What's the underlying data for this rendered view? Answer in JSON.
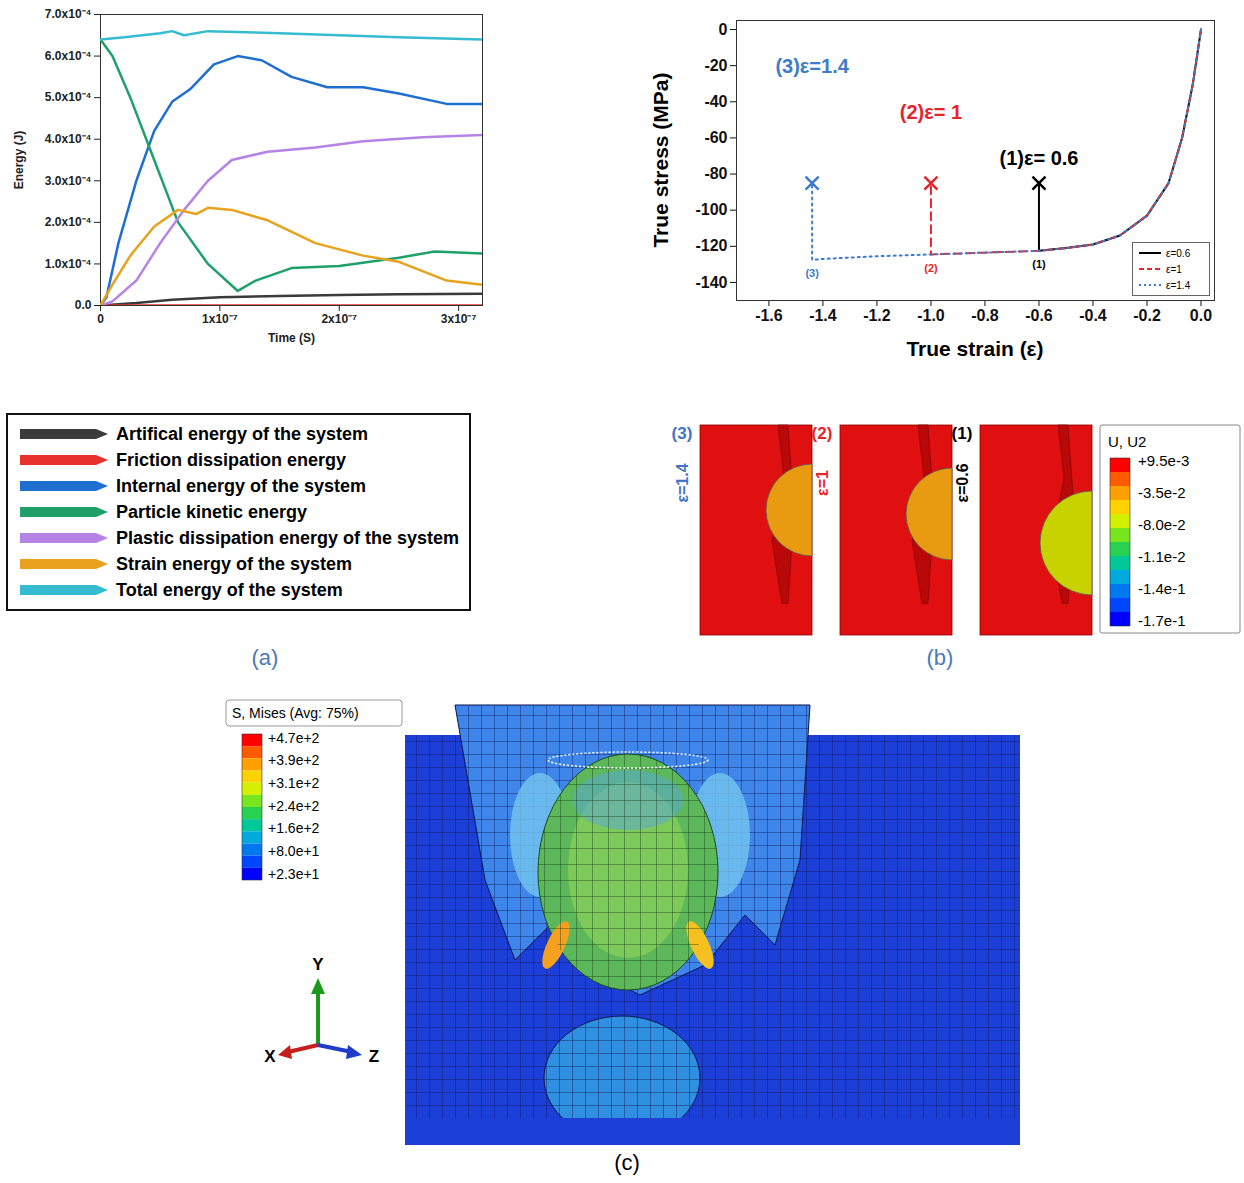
{
  "chart_data": [
    {
      "panel": "(a)",
      "type": "line",
      "x_label": "Time (S)",
      "y_label": "Energy (J)",
      "xlim": [
        0,
        3.2e-07
      ],
      "xticks": [
        0,
        {
          "value": 1e-07,
          "label": "1x10⁻⁷"
        },
        {
          "value": 2e-07,
          "label": "2x10⁻⁷"
        },
        {
          "value": 3e-07,
          "label": "3x10⁻⁷"
        }
      ],
      "ylim": [
        0,
        0.0007
      ],
      "yticks": [
        {
          "value": 0,
          "label": "0.0"
        },
        {
          "value": 0.0001,
          "label": "1.0x10⁻⁴"
        },
        {
          "value": 0.0002,
          "label": "2.0x10⁻⁴"
        },
        {
          "value": 0.0003,
          "label": "3.0x10⁻⁴"
        },
        {
          "value": 0.0004,
          "label": "4.0x10⁻⁴"
        },
        {
          "value": 0.0005,
          "label": "5.0x10⁻⁴"
        },
        {
          "value": 0.0006,
          "label": "6.0x10⁻⁴"
        },
        {
          "value": 0.0007,
          "label": "7.0x10⁻⁴"
        }
      ],
      "grid": false,
      "legend": "bottom",
      "series": [
        {
          "name": "Artifical energy of the system",
          "color": "#3a3a3a",
          "x": [
            0,
            3e-08,
            6e-08,
            1e-07,
            1.5e-07,
            2e-07,
            2.5e-07,
            3.2e-07
          ],
          "values": [
            0,
            6e-06,
            1.4e-05,
            2e-05,
            2.3e-05,
            2.5e-05,
            2.7e-05,
            2.8e-05
          ]
        },
        {
          "name": "Friction dissipation energy",
          "color": "#e8312c",
          "x": [
            0,
            1e-07,
            2e-07,
            3.2e-07
          ],
          "values": [
            0,
            0,
            0,
            0
          ]
        },
        {
          "name": "Internal energy of the system",
          "color": "#1f6fd1",
          "x": [
            0,
            5e-09,
            1.5e-08,
            3e-08,
            4.5e-08,
            6e-08,
            7.5e-08,
            9.5e-08,
            1.15e-07,
            1.35e-07,
            1.6e-07,
            1.9e-07,
            2.2e-07,
            2.5e-07,
            2.9e-07,
            3.2e-07
          ],
          "values": [
            0,
            2e-05,
            0.00015,
            0.0003,
            0.00042,
            0.00049,
            0.00052,
            0.00058,
            0.0006,
            0.00059,
            0.00055,
            0.000525,
            0.000525,
            0.00051,
            0.000485,
            0.000485
          ]
        },
        {
          "name": "Particle kinetic energy",
          "color": "#1fa06b",
          "x": [
            0,
            1e-08,
            2.5e-08,
            4.5e-08,
            6.5e-08,
            9e-08,
            1.15e-07,
            1.3e-07,
            1.6e-07,
            2e-07,
            2.5e-07,
            2.8e-07,
            3.2e-07
          ],
          "values": [
            0.00064,
            0.0006,
            0.0005,
            0.00035,
            0.0002,
            0.0001,
            3.5e-05,
            6e-05,
            9e-05,
            9.5e-05,
            0.000115,
            0.00013,
            0.000125
          ]
        },
        {
          "name": "Plastic dissipation energy of the system",
          "color": "#b583e6",
          "x": [
            0,
            1e-08,
            3e-08,
            5e-08,
            7e-08,
            9e-08,
            1.1e-07,
            1.4e-07,
            1.8e-07,
            2.2e-07,
            2.7e-07,
            3.2e-07
          ],
          "values": [
            0,
            1e-05,
            6e-05,
            0.00015,
            0.00023,
            0.0003,
            0.00035,
            0.00037,
            0.00038,
            0.000395,
            0.000405,
            0.00041
          ]
        },
        {
          "name": "Strain energy of the system",
          "color": "#e8a21e",
          "x": [
            0,
            1e-08,
            2.5e-08,
            4.5e-08,
            6.5e-08,
            8e-08,
            9e-08,
            1.1e-07,
            1.4e-07,
            1.8e-07,
            2.2e-07,
            2.5e-07,
            2.9e-07,
            3.2e-07
          ],
          "values": [
            0,
            5e-05,
            0.00012,
            0.00019,
            0.00023,
            0.00022,
            0.000235,
            0.00023,
            0.000205,
            0.00015,
            0.00012,
            0.000105,
            6e-05,
            5e-05
          ]
        },
        {
          "name": "Total energy of the system",
          "color": "#35bcd0",
          "x": [
            0,
            2e-08,
            5e-08,
            6e-08,
            7e-08,
            9e-08,
            1.5e-07,
            2.5e-07,
            3.2e-07
          ],
          "values": [
            0.00064,
            0.000645,
            0.000655,
            0.00066,
            0.00065,
            0.00066,
            0.000655,
            0.000645,
            0.00064
          ]
        }
      ]
    },
    {
      "panel": "(b)",
      "type": "line",
      "x_label": "True strain (ε)",
      "y_label": "True stress (MPa)",
      "xlim": [
        -1.72,
        0.05
      ],
      "xticks": [
        -1.6,
        -1.4,
        -1.2,
        {
          "value": -1,
          "label": "-1.0"
        },
        -0.8,
        -0.6,
        -0.4,
        -0.2,
        {
          "value": 0,
          "label": "0.0"
        }
      ],
      "ylim": [
        -150,
        5
      ],
      "yticks": [
        0,
        -20,
        -40,
        -60,
        -80,
        -100,
        -120,
        -140
      ],
      "grid": false,
      "legend": "bottom right",
      "series": [
        {
          "name": "ε=0.6",
          "color": "#000000",
          "line_style": "solid",
          "marker": "x",
          "label": "(1)ε= 0.6",
          "point_label": "(1)",
          "x": [
            0,
            -0.03,
            -0.07,
            -0.12,
            -0.2,
            -0.3,
            -0.4,
            -0.5,
            -0.6,
            -0.6
          ],
          "values": [
            0,
            -30,
            -60,
            -85,
            -103,
            -114,
            -119,
            -121,
            -122.5,
            -85
          ]
        },
        {
          "name": "ε=1",
          "color": "#e8242a",
          "line_style": "dashed",
          "marker": "x",
          "label": "(2)ε= 1",
          "point_label": "(2)",
          "x": [
            0,
            -0.03,
            -0.07,
            -0.12,
            -0.2,
            -0.3,
            -0.4,
            -0.5,
            -0.6,
            -0.8,
            -1,
            -1
          ],
          "values": [
            0,
            -30,
            -60,
            -85,
            -103,
            -114,
            -119,
            -121,
            -122.5,
            -123.5,
            -124.5,
            -85
          ]
        },
        {
          "name": "ε=1.4",
          "color": "#3d7cc9",
          "line_style": "dotted",
          "marker": "x",
          "label": "(3)ε=1.4",
          "point_label": "(3)",
          "x": [
            0,
            -0.03,
            -0.07,
            -0.12,
            -0.2,
            -0.3,
            -0.4,
            -0.5,
            -0.6,
            -0.8,
            -1,
            -1.2,
            -1.4,
            -1.44,
            -1.44
          ],
          "values": [
            0,
            -30,
            -60,
            -85,
            -103,
            -114,
            -119,
            -121,
            -122.5,
            -123.5,
            -124.5,
            -125.5,
            -127,
            -127.5,
            -85
          ]
        }
      ]
    }
  ],
  "contour_snapshots": {
    "colorbar": {
      "title": "U, U2",
      "ticks": [
        {
          "value": 0.0095,
          "label": "+9.5e-3"
        },
        {
          "value": -0.035,
          "label": "-3.5e-2"
        },
        {
          "value": -0.08,
          "label": "-8.0e-2"
        },
        {
          "value": -0.011,
          "label": "-1.1e-2"
        },
        {
          "value": -0.14,
          "label": "-1.4e-1"
        },
        {
          "value": -0.17,
          "label": "-1.7e-1"
        }
      ],
      "colors": [
        "#ff0000",
        "#ff5a00",
        "#ffa000",
        "#ffd200",
        "#d2f000",
        "#78e61e",
        "#28d250",
        "#00c896",
        "#00aadc",
        "#0078f0",
        "#0046ff",
        "#0000ff"
      ]
    },
    "snapshots": [
      {
        "label": "(3)",
        "strain_label": "ε=1.4",
        "color": "#4472c4",
        "particle_color": "#e89a10"
      },
      {
        "label": "(2)",
        "strain_label": "ε=1",
        "color": "#e8242a",
        "particle_color": "#e89a10"
      },
      {
        "label": "(1)",
        "strain_label": "ε=0.6",
        "color": "#000000",
        "particle_color": "#c8d200"
      }
    ]
  },
  "mises_contour": {
    "panel": "(c)",
    "colorbar": {
      "title": "S, Mises (Avg: 75%)",
      "ticks": [
        {
          "value": 470,
          "label": "+4.7e+2"
        },
        {
          "value": 390,
          "label": "+3.9e+2"
        },
        {
          "value": 310,
          "label": "+3.1e+2"
        },
        {
          "value": 240,
          "label": "+2.4e+2"
        },
        {
          "value": 160,
          "label": "+1.6e+2"
        },
        {
          "value": 80,
          "label": "+8.0e+1"
        },
        {
          "value": 23,
          "label": "+2.3e+1"
        }
      ],
      "colors": [
        "#ff0000",
        "#ff5a00",
        "#ffa000",
        "#ffd200",
        "#d2f000",
        "#78e61e",
        "#28d250",
        "#00c896",
        "#00aadc",
        "#0078f0",
        "#0046ff",
        "#0000ff"
      ]
    },
    "axes": [
      "X",
      "Y",
      "Z"
    ]
  }
}
